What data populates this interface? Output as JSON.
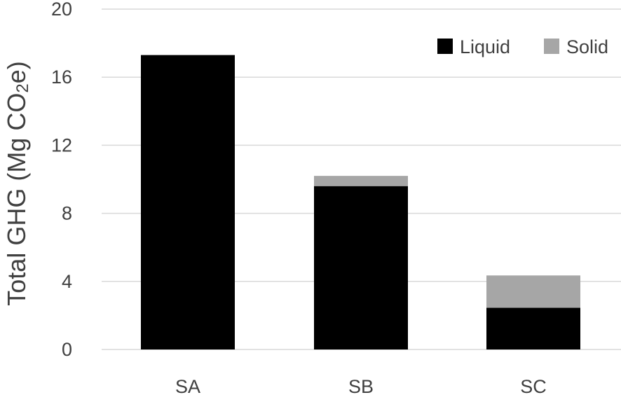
{
  "chart_data": {
    "type": "bar",
    "stacked": true,
    "categories": [
      "SA",
      "SB",
      "SC"
    ],
    "series": [
      {
        "name": "Liquid",
        "values": [
          17.3,
          9.6,
          2.45
        ],
        "color": "#000000"
      },
      {
        "name": "Solid",
        "values": [
          0.0,
          0.6,
          1.9
        ],
        "color": "#a6a6a6"
      }
    ],
    "ylabel": "Total GHG (Mg CO2e)",
    "ylabel_parts": {
      "before": "Total GHG (Mg CO",
      "sub": "2",
      "after": "e)"
    },
    "ylim": [
      0,
      20
    ],
    "yticks": [
      0,
      4,
      8,
      12,
      16,
      20
    ],
    "grid": true,
    "legend_position": "top-right"
  }
}
